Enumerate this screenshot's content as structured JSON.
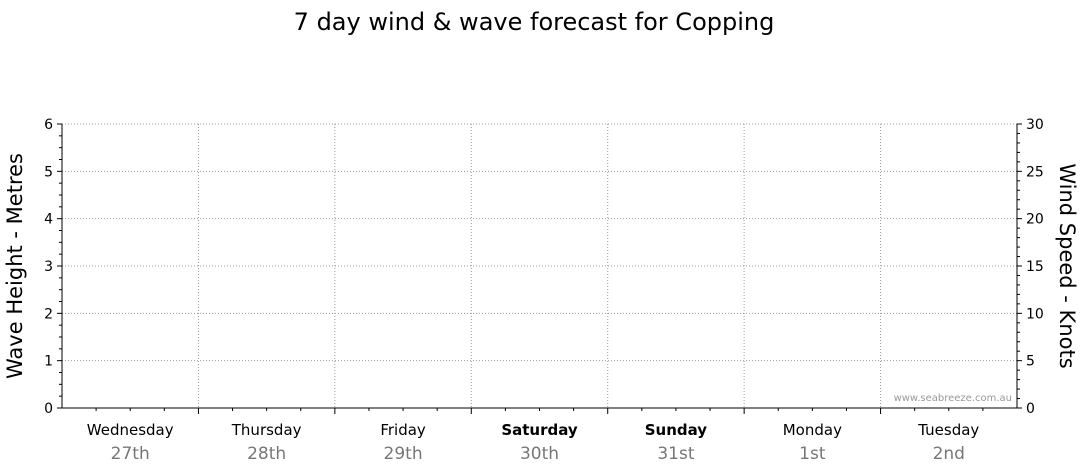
{
  "chart_data": {
    "type": "line",
    "title": "7 day wind & wave forecast for Copping",
    "ylabel_left": "Wave Height - Metres",
    "ylabel_right": "Wind Speed - Knots",
    "ylim_left": [
      0,
      6
    ],
    "ylim_right": [
      0,
      30
    ],
    "yticks_left": [
      "0",
      "1",
      "2",
      "3",
      "4",
      "5",
      "6"
    ],
    "yticks_right": [
      "0",
      "5",
      "10",
      "15",
      "20",
      "25",
      "30"
    ],
    "grid": true,
    "days": [
      {
        "name": "Wednesday",
        "date": "27th",
        "bold": false
      },
      {
        "name": "Thursday",
        "date": "28th",
        "bold": false
      },
      {
        "name": "Friday",
        "date": "29th",
        "bold": false
      },
      {
        "name": "Saturday",
        "date": "30th",
        "bold": true
      },
      {
        "name": "Sunday",
        "date": "31st",
        "bold": true
      },
      {
        "name": "Monday",
        "date": "1st",
        "bold": false
      },
      {
        "name": "Tuesday",
        "date": "2nd",
        "bold": false
      }
    ],
    "series": []
  },
  "watermark": "www.seabreeze.com.au"
}
